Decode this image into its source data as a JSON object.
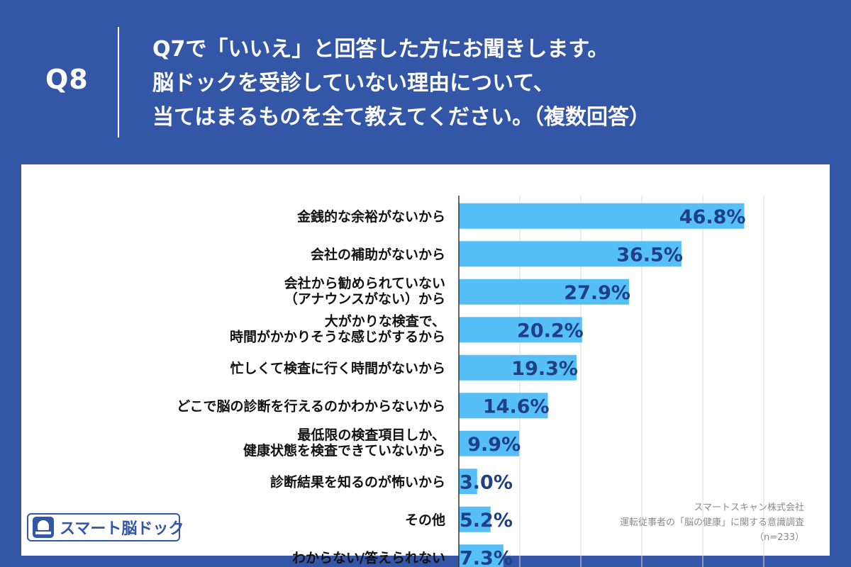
{
  "header": {
    "question_number": "Q8",
    "question_lines": [
      "Q7で「いいえ」と回答した方にお聞きします。",
      "脳ドックを受診していない理由について、",
      "当てはまるものを全て教えてください。（複数回答）"
    ]
  },
  "chart_data": {
    "type": "bar",
    "orientation": "horizontal",
    "categories": [
      [
        "金銭的な余裕がないから"
      ],
      [
        "会社の補助がないから"
      ],
      [
        "会社から勧められていない",
        "（アナウンスがない）から"
      ],
      [
        "大がかりな検査で、",
        "時間がかかりそうな感じがするから"
      ],
      [
        "忙しくて検査に行く時間がないから"
      ],
      [
        "どこで脳の診断を行えるのかわからないから"
      ],
      [
        "最低限の検査項目しか、",
        "健康状態を検査できていないから"
      ],
      [
        "診断結果を知るのが怖いから"
      ],
      [
        "その他"
      ],
      [
        "わからない/答えられない"
      ]
    ],
    "values": [
      46.8,
      36.5,
      27.9,
      20.2,
      19.3,
      14.6,
      9.9,
      3.0,
      5.2,
      7.3
    ],
    "value_labels": [
      "46.8%",
      "36.5%",
      "27.9%",
      "20.2%",
      "19.3%",
      "14.6%",
      "9.9%",
      "3.0%",
      "5.2%",
      "7.3%"
    ],
    "xlim": [
      0,
      50
    ],
    "grid": true,
    "bar_color": "#56bff7",
    "label_color": "#1f3f87"
  },
  "logo": {
    "text": "スマート脳ドック",
    "mark_icon": "brain-scanner-icon"
  },
  "source": {
    "company": "スマートスキャン株式会社",
    "survey": "運転従事者の「脳の健康」に関する意識調査",
    "n": "（n=233）"
  },
  "colors": {
    "background": "#3356a7",
    "panel": "#ffffff"
  }
}
